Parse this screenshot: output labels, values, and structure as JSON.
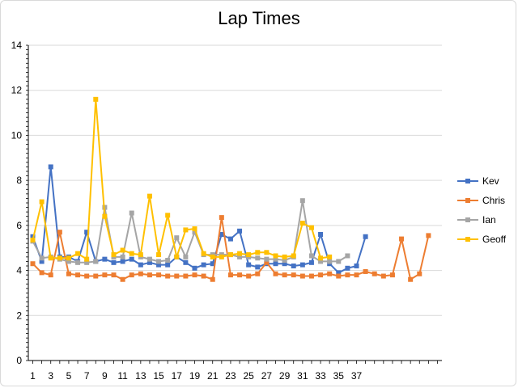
{
  "chart_data": {
    "type": "line",
    "title": "Lap Times",
    "xlabel": "",
    "ylabel": "",
    "ylim": [
      0,
      14
    ],
    "xlim": [
      1,
      46
    ],
    "yticks": [
      0,
      2,
      4,
      6,
      8,
      10,
      12,
      14
    ],
    "xticks": [
      1,
      3,
      5,
      7,
      9,
      11,
      13,
      15,
      17,
      19,
      21,
      23,
      25,
      27,
      29,
      31,
      33,
      35,
      37
    ],
    "grid": "horizontal",
    "legend_position": "right",
    "series": [
      {
        "name": "Kev",
        "color": "#4472C4",
        "values": [
          5.5,
          4.4,
          8.6,
          4.6,
          4.6,
          4.4,
          5.7,
          4.4,
          4.5,
          4.35,
          4.4,
          4.5,
          4.25,
          4.35,
          4.25,
          4.25,
          4.6,
          4.35,
          4.1,
          4.25,
          4.3,
          5.6,
          5.4,
          5.75,
          4.25,
          4.15,
          4.3,
          4.3,
          4.3,
          4.2,
          4.25,
          4.35,
          5.6,
          4.3,
          3.9,
          4.1,
          4.2,
          5.5
        ]
      },
      {
        "name": "Chris",
        "color": "#ED7D31",
        "values": [
          4.3,
          3.9,
          3.8,
          5.7,
          3.85,
          3.8,
          3.75,
          3.75,
          3.8,
          3.8,
          3.6,
          3.8,
          3.85,
          3.8,
          3.8,
          3.75,
          3.75,
          3.75,
          3.8,
          3.75,
          3.6,
          6.35,
          3.8,
          3.8,
          3.75,
          3.85,
          4.35,
          3.85,
          3.8,
          3.8,
          3.75,
          3.75,
          3.8,
          3.85,
          3.75,
          3.8,
          3.8,
          3.95,
          3.85,
          3.75,
          3.8,
          5.4,
          3.6,
          3.85,
          5.55
        ]
      },
      {
        "name": "Ian",
        "color": "#A5A5A5",
        "values": [
          5.3,
          4.55,
          4.6,
          4.5,
          4.4,
          4.35,
          4.35,
          4.4,
          6.8,
          4.6,
          4.6,
          6.55,
          4.6,
          4.5,
          4.4,
          4.45,
          5.45,
          4.6,
          5.7,
          4.7,
          4.7,
          4.7,
          4.7,
          4.6,
          4.6,
          4.55,
          4.5,
          4.5,
          4.45,
          4.6,
          7.1,
          4.65,
          4.4,
          4.4,
          4.4,
          4.65
        ]
      },
      {
        "name": "Geoff",
        "color": "#FFC000",
        "values": [
          5.35,
          7.05,
          4.55,
          4.55,
          4.55,
          4.75,
          4.5,
          11.6,
          6.4,
          4.7,
          4.9,
          4.75,
          4.7,
          7.3,
          4.7,
          6.45,
          4.6,
          5.8,
          5.85,
          4.75,
          4.6,
          4.6,
          4.7,
          4.75,
          4.7,
          4.8,
          4.8,
          4.65,
          4.6,
          4.65,
          6.1,
          5.9,
          4.55,
          4.6
        ]
      }
    ]
  }
}
